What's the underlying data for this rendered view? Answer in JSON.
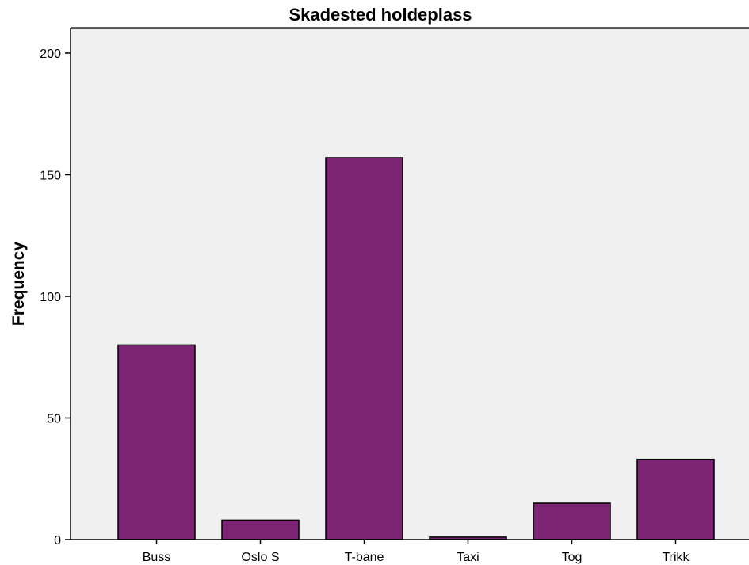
{
  "chart_data": {
    "type": "bar",
    "title": "Skadested holdeplass",
    "xlabel": "",
    "ylabel": "Frequency",
    "categories": [
      "Buss",
      "Oslo S",
      "T-bane",
      "Taxi",
      "Tog",
      "Trikk"
    ],
    "values": [
      80,
      8,
      157,
      1,
      15,
      33
    ],
    "ylim": [
      0,
      210
    ],
    "yticks": [
      0,
      50,
      100,
      150,
      200
    ],
    "grid": false,
    "legend": "none"
  },
  "colors": {
    "bar_fill": "#7b2574",
    "plot_background": "#f0f0f0",
    "page_background": "#ffffff",
    "axis": "#000000"
  }
}
